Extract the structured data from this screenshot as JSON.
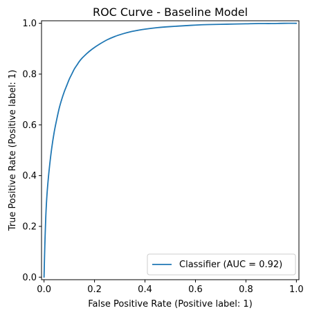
{
  "chart_data": {
    "type": "line",
    "title": "ROC Curve - Baseline Model",
    "xlabel": "False Positive Rate (Positive label: 1)",
    "ylabel": "True Positive Rate (Positive label: 1)",
    "xlim": [
      -0.01,
      1.01
    ],
    "ylim": [
      -0.01,
      1.01
    ],
    "xticks": [
      0.0,
      0.2,
      0.4,
      0.6,
      0.8,
      1.0
    ],
    "xtick_labels": [
      "0.0",
      "0.2",
      "0.4",
      "0.6",
      "0.8",
      "1.0"
    ],
    "yticks": [
      0.0,
      0.2,
      0.4,
      0.6,
      0.8,
      1.0
    ],
    "ytick_labels": [
      "0.0",
      "0.2",
      "0.4",
      "0.6",
      "0.8",
      "1.0"
    ],
    "grid": false,
    "legend_placement": "lower-right",
    "series": [
      {
        "name": "Classifier (AUC = 0.92)",
        "color": "#1f77b4",
        "x": [
          0.0,
          0.003,
          0.007,
          0.012,
          0.02,
          0.03,
          0.04,
          0.05,
          0.06,
          0.07,
          0.08,
          0.09,
          0.1,
          0.11,
          0.12,
          0.13,
          0.14,
          0.15,
          0.16,
          0.18,
          0.2,
          0.22,
          0.25,
          0.28,
          0.31,
          0.34,
          0.37,
          0.4,
          0.45,
          0.5,
          0.55,
          0.6,
          0.65,
          0.7,
          0.75,
          0.8,
          0.85,
          0.9,
          0.95,
          1.0
        ],
        "y": [
          0.0,
          0.12,
          0.24,
          0.33,
          0.42,
          0.505,
          0.57,
          0.62,
          0.665,
          0.7,
          0.73,
          0.755,
          0.78,
          0.8,
          0.82,
          0.835,
          0.85,
          0.862,
          0.872,
          0.89,
          0.905,
          0.918,
          0.935,
          0.948,
          0.958,
          0.966,
          0.972,
          0.977,
          0.983,
          0.987,
          0.99,
          0.993,
          0.995,
          0.996,
          0.997,
          0.998,
          0.999,
          0.999,
          1.0,
          1.0
        ]
      }
    ]
  }
}
